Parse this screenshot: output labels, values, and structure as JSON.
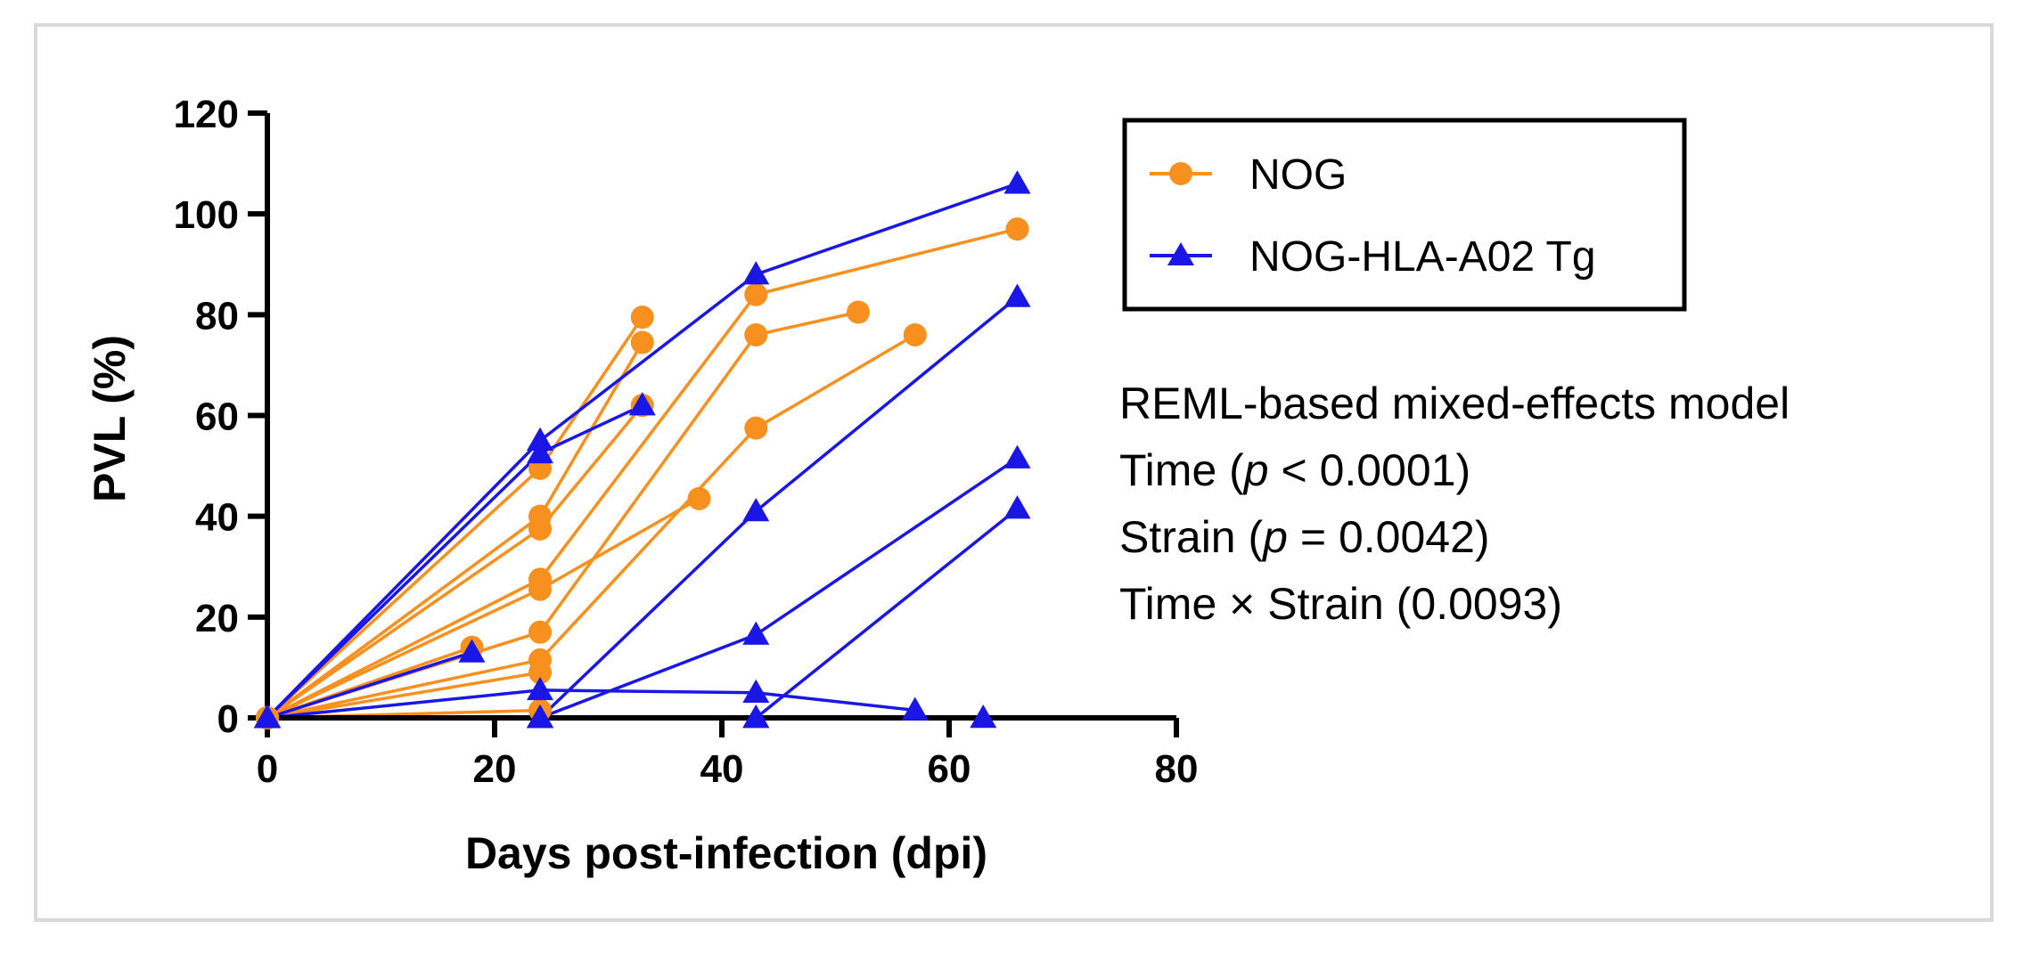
{
  "colors": {
    "nog": "#f7901e",
    "nog_hla": "#1a16e6",
    "axis": "#000000",
    "frame_border": "#d9d9d9"
  },
  "legend": {
    "items": [
      "NOG",
      "NOG-HLA-A02 Tg"
    ]
  },
  "stats": {
    "title": "REML-based mixed-effects model",
    "line_time_prefix": "Time (",
    "line_time_p": "p",
    "line_time_suffix": " < 0.0001)",
    "line_strain_prefix": "Strain (",
    "line_strain_p": "p",
    "line_strain_suffix": " = 0.0042)",
    "line_interaction": "Time × Strain (0.0093)"
  },
  "chart_data": {
    "type": "line",
    "title": "",
    "xlabel": "Days post-infection (dpi)",
    "ylabel": "PVL (%)",
    "xlim": [
      0,
      80
    ],
    "ylim": [
      0,
      120
    ],
    "x_ticks": [
      0,
      20,
      40,
      60,
      80
    ],
    "y_ticks": [
      0,
      20,
      40,
      60,
      80,
      100,
      120
    ],
    "grid": false,
    "legend_position": "top-right",
    "groups": [
      {
        "name": "NOG",
        "marker": "circle",
        "color": "#f7901e",
        "subjects": [
          [
            [
              0,
              0
            ],
            [
              18,
              14
            ]
          ],
          [
            [
              0,
              0
            ],
            [
              24,
              49.5
            ],
            [
              33,
              79.5
            ]
          ],
          [
            [
              0,
              0
            ],
            [
              24,
              40
            ],
            [
              33,
              74.5
            ]
          ],
          [
            [
              0,
              0
            ],
            [
              24,
              37.5
            ],
            [
              33,
              62
            ]
          ],
          [
            [
              0,
              0
            ],
            [
              24,
              27.5
            ],
            [
              43,
              84
            ],
            [
              66,
              97
            ]
          ],
          [
            [
              0,
              0
            ],
            [
              24,
              25.5
            ],
            [
              38,
              43.5
            ]
          ],
          [
            [
              0,
              0
            ],
            [
              24,
              17
            ],
            [
              43,
              76
            ],
            [
              52,
              80.5
            ]
          ],
          [
            [
              0,
              0
            ],
            [
              24,
              11.5
            ],
            [
              43,
              57.5
            ],
            [
              57,
              76
            ]
          ],
          [
            [
              0,
              0
            ],
            [
              24,
              9
            ]
          ],
          [
            [
              0,
              0
            ],
            [
              24,
              1.5
            ]
          ]
        ]
      },
      {
        "name": "NOG-HLA-A02 Tg",
        "marker": "triangle",
        "color": "#1a16e6",
        "subjects": [
          [
            [
              0,
              0
            ],
            [
              18,
              13
            ]
          ],
          [
            [
              0,
              0
            ],
            [
              24,
              55
            ],
            [
              43,
              88
            ],
            [
              66,
              106
            ]
          ],
          [
            [
              0,
              0
            ],
            [
              24,
              52.5
            ],
            [
              33,
              62
            ]
          ],
          [
            [
              0,
              0
            ],
            [
              24,
              5.5
            ],
            [
              43,
              5
            ],
            [
              57,
              1.5
            ]
          ],
          [
            [
              0,
              0
            ],
            [
              24,
              0
            ],
            [
              43,
              41
            ],
            [
              66,
              83.5
            ]
          ],
          [
            [
              0,
              0
            ],
            [
              24,
              0
            ],
            [
              43,
              16.5
            ],
            [
              66,
              51.5
            ]
          ],
          [
            [
              0,
              0
            ],
            [
              24,
              0
            ],
            [
              43,
              0
            ],
            [
              66,
              41.5
            ]
          ],
          [
            [
              0,
              0
            ],
            [
              24,
              0
            ],
            [
              43,
              0
            ],
            [
              63,
              0
            ]
          ]
        ]
      }
    ]
  }
}
